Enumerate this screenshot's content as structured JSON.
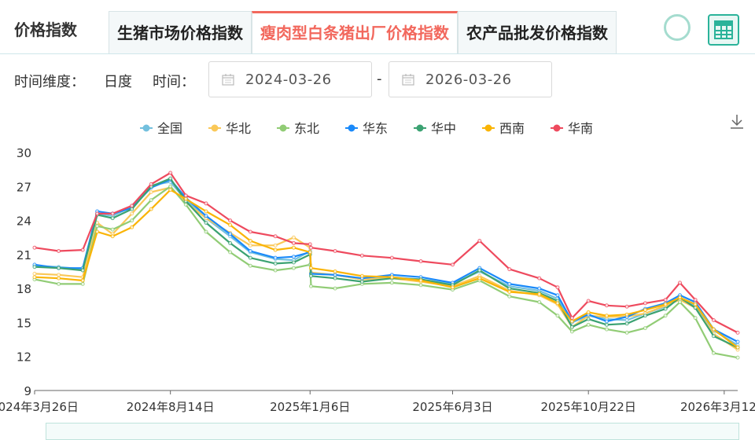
{
  "header": {
    "title": "价格指数",
    "tabs": [
      {
        "label": "生猪市场价格指数",
        "active": false
      },
      {
        "label": "瘦肉型白条猪出厂价格指数",
        "active": true
      },
      {
        "label": "农产品批发价格指数",
        "active": false
      }
    ]
  },
  "filters": {
    "dimension_label": "时间维度：",
    "dimension_value": "日度",
    "time_label": "时间：",
    "start_date": "2024-03-26",
    "end_date": "2026-03-26",
    "separator": "-"
  },
  "chart_data": {
    "type": "line",
    "x": [
      "2024-03-26",
      "2024-04-20",
      "2024-05-15",
      "2024-05-30",
      "2024-06-15",
      "2024-07-05",
      "2024-07-25",
      "2024-08-14",
      "2024-08-30",
      "2024-09-20",
      "2024-10-15",
      "2024-11-05",
      "2024-12-01",
      "2024-12-20",
      "2025-01-06",
      "2025-01-07",
      "2025-02-01",
      "2025-03-01",
      "2025-04-01",
      "2025-05-01",
      "2025-06-03",
      "2025-07-01",
      "2025-08-01",
      "2025-09-01",
      "2025-09-20",
      "2025-10-05",
      "2025-10-22",
      "2025-11-10",
      "2025-12-01",
      "2025-12-20",
      "2026-01-10",
      "2026-01-25",
      "2026-02-10",
      "2026-03-01",
      "2026-03-26"
    ],
    "series": [
      {
        "name": "全国",
        "color": "#73c0de",
        "values": [
          20.0,
          19.9,
          19.7,
          24.6,
          24.4,
          25.2,
          27.1,
          27.4,
          25.8,
          24.2,
          22.6,
          21.2,
          20.6,
          20.5,
          21.3,
          19.3,
          19.2,
          18.8,
          19.0,
          18.8,
          18.4,
          19.5,
          18.2,
          17.8,
          17.1,
          15.0,
          15.6,
          15.3,
          15.2,
          15.8,
          16.4,
          17.2,
          16.5,
          14.3,
          13.0
        ]
      },
      {
        "name": "华北",
        "color": "#fac858",
        "values": [
          19.3,
          19.2,
          19.0,
          23.8,
          22.8,
          24.6,
          26.5,
          26.9,
          25.6,
          24.2,
          22.9,
          21.8,
          21.8,
          22.5,
          21.6,
          19.4,
          19.2,
          18.8,
          18.9,
          18.6,
          18.2,
          19.1,
          17.8,
          17.4,
          16.6,
          14.6,
          15.6,
          15.5,
          15.5,
          15.8,
          16.5,
          17.0,
          16.3,
          14.0,
          12.6
        ]
      },
      {
        "name": "东北",
        "color": "#91cc75",
        "values": [
          18.8,
          18.4,
          18.4,
          23.5,
          23.2,
          24.0,
          25.8,
          27.0,
          25.4,
          23.0,
          21.2,
          20.0,
          19.6,
          19.8,
          20.1,
          18.2,
          18.0,
          18.4,
          18.5,
          18.3,
          17.9,
          18.7,
          17.3,
          16.8,
          15.6,
          14.2,
          14.8,
          14.4,
          14.1,
          14.5,
          15.6,
          16.8,
          15.4,
          12.3,
          11.9
        ]
      },
      {
        "name": "华东",
        "color": "#1989fa",
        "values": [
          20.1,
          19.8,
          19.8,
          24.8,
          24.6,
          25.1,
          26.9,
          27.6,
          26.0,
          24.4,
          22.8,
          21.3,
          20.7,
          20.8,
          21.2,
          19.3,
          19.2,
          18.9,
          19.2,
          19.0,
          18.5,
          19.8,
          18.4,
          18.0,
          17.4,
          15.1,
          15.7,
          15.1,
          15.5,
          16.2,
          16.7,
          17.4,
          16.8,
          14.4,
          13.3
        ]
      },
      {
        "name": "华中",
        "color": "#3ba272",
        "values": [
          19.9,
          19.8,
          19.6,
          24.5,
          24.2,
          25.0,
          27.0,
          27.7,
          25.7,
          23.8,
          22.0,
          20.7,
          20.2,
          20.3,
          21.0,
          19.1,
          18.9,
          18.6,
          18.9,
          18.8,
          18.3,
          19.6,
          18.0,
          17.6,
          16.9,
          14.6,
          15.3,
          14.8,
          14.9,
          15.6,
          16.2,
          17.2,
          16.3,
          13.8,
          12.8
        ]
      },
      {
        "name": "西南",
        "color": "#fab405",
        "values": [
          19.0,
          18.9,
          18.7,
          23.0,
          22.6,
          23.4,
          25.0,
          26.7,
          25.9,
          24.8,
          23.6,
          22.2,
          21.4,
          21.6,
          21.2,
          19.8,
          19.5,
          19.1,
          19.0,
          18.7,
          18.1,
          18.9,
          17.7,
          17.5,
          16.7,
          15.1,
          15.9,
          15.6,
          15.7,
          16.1,
          16.6,
          17.2,
          16.6,
          14.4,
          12.8
        ]
      },
      {
        "name": "华南",
        "color": "#ee4a5e",
        "values": [
          21.6,
          21.3,
          21.4,
          24.6,
          24.6,
          25.3,
          27.2,
          28.2,
          26.2,
          25.5,
          24.0,
          23.0,
          22.6,
          22.0,
          21.9,
          21.6,
          21.3,
          20.9,
          20.7,
          20.4,
          20.1,
          22.2,
          19.7,
          18.9,
          18.1,
          15.4,
          16.9,
          16.5,
          16.4,
          16.7,
          17.0,
          18.5,
          17.0,
          15.2,
          14.1
        ]
      }
    ],
    "y_ticks": [
      "30",
      "27",
      "24",
      "21",
      "18",
      "15",
      "12",
      "9"
    ],
    "ylim": [
      9,
      30
    ],
    "x_tick_labels": [
      {
        "date": "2024-03-26",
        "label": "2024年3月26日"
      },
      {
        "date": "2024-08-14",
        "label": "2024年8月14日"
      },
      {
        "date": "2025-01-06",
        "label": "2025年1月6日"
      },
      {
        "date": "2025-06-03",
        "label": "2025年6月3日"
      },
      {
        "date": "2025-10-22",
        "label": "2025年10月22日"
      },
      {
        "date": "2026-03-12",
        "label": "2026年3月12日"
      }
    ],
    "legend_position": "top",
    "grid": false
  },
  "icons": {
    "calendar": "calendar-icon",
    "download": "download-icon",
    "table": "table-icon",
    "refresh": "refresh-icon"
  }
}
